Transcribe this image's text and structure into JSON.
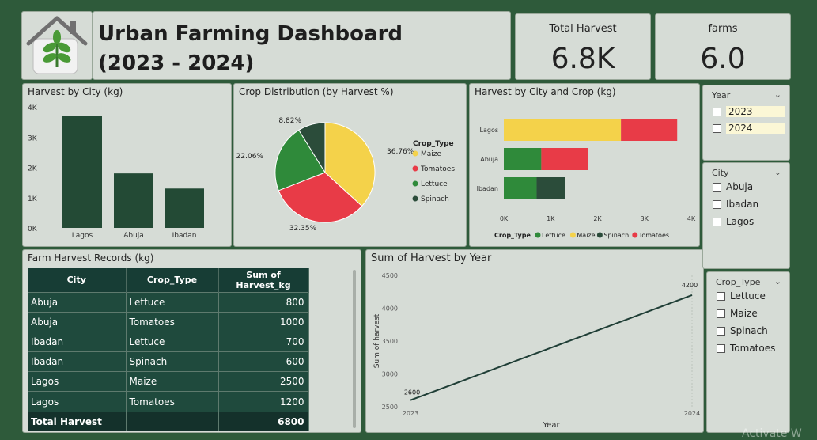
{
  "header": {
    "title": "Urban Farming Dashboard (2023 - 2024)",
    "logo_icon": "house-plant-icon"
  },
  "kpis": [
    {
      "label": "Total Harvest",
      "value": "6.8K"
    },
    {
      "label": "farms",
      "value": "6.0"
    }
  ],
  "charts": {
    "harvest_by_city": {
      "title": "Harvest by City (kg)"
    },
    "crop_distribution": {
      "title": "Crop Distribution (by Harvest %)"
    },
    "harvest_by_city_crop": {
      "title": "Harvest by City and Crop (kg)"
    },
    "sum_by_year": {
      "title": "Sum of Harvest by Year"
    }
  },
  "chart_data": [
    {
      "type": "bar",
      "title": "Harvest by City (kg)",
      "categories": [
        "Lagos",
        "Abuja",
        "Ibadan"
      ],
      "values": [
        3700,
        1800,
        1300
      ],
      "yticks": [
        "0K",
        "1K",
        "2K",
        "3K",
        "4K"
      ],
      "ylim": [
        0,
        4000
      ],
      "color": "#234a35"
    },
    {
      "type": "pie",
      "title": "Crop Distribution (by Harvest %)",
      "legend_title": "Crop_Type",
      "slices": [
        {
          "name": "Maize",
          "value": 36.76,
          "label": "36.76%",
          "color": "#f4d24a"
        },
        {
          "name": "Tomatoes",
          "value": 32.35,
          "label": "32.35%",
          "color": "#e83b47"
        },
        {
          "name": "Lettuce",
          "value": 22.06,
          "label": "22.06%",
          "color": "#2f8a3a"
        },
        {
          "name": "Spinach",
          "value": 8.82,
          "label": "8.82%",
          "color": "#2b4c3a"
        }
      ],
      "legend_placement": "right"
    },
    {
      "type": "bar",
      "orientation": "horizontal",
      "stacked": true,
      "title": "Harvest by City and Crop (kg)",
      "categories": [
        "Lagos",
        "Abuja",
        "Ibadan"
      ],
      "series": [
        {
          "name": "Lettuce",
          "color": "#2f8a3a",
          "values": [
            0,
            800,
            700
          ]
        },
        {
          "name": "Maize",
          "color": "#f4d24a",
          "values": [
            2500,
            0,
            0
          ]
        },
        {
          "name": "Spinach",
          "color": "#2b4c3a",
          "values": [
            0,
            0,
            600
          ]
        },
        {
          "name": "Tomatoes",
          "color": "#e83b47",
          "values": [
            1200,
            1000,
            0
          ]
        }
      ],
      "xticks": [
        "0K",
        "1K",
        "2K",
        "3K",
        "4K"
      ],
      "xlim": [
        0,
        4000
      ],
      "legend_title": "Crop_Type",
      "legend_placement": "bottom"
    },
    {
      "type": "line",
      "title": "Sum of Harvest by Year",
      "x": [
        "2023",
        "2024"
      ],
      "values": [
        2600,
        4200
      ],
      "xlabel": "Year",
      "ylabel": "Sum of harvest",
      "yticks": [
        "2500",
        "3000",
        "3500",
        "4000",
        "4500"
      ],
      "ylim": [
        2500,
        4500
      ],
      "color": "#1e3d35"
    }
  ],
  "table": {
    "title": "Farm Harvest Records (kg)",
    "columns": [
      "City",
      "Crop_Type",
      "Sum of Harvest_kg"
    ],
    "rows": [
      [
        "Abuja",
        "Lettuce",
        "800"
      ],
      [
        "Abuja",
        "Tomatoes",
        "1000"
      ],
      [
        "Ibadan",
        "Lettuce",
        "700"
      ],
      [
        "Ibadan",
        "Spinach",
        "600"
      ],
      [
        "Lagos",
        "Maize",
        "2500"
      ],
      [
        "Lagos",
        "Tomatoes",
        "1200"
      ]
    ],
    "total": [
      "Total Harvest",
      "",
      "6800"
    ]
  },
  "slicers": {
    "year": {
      "title": "Year",
      "options": [
        "2023",
        "2024"
      ]
    },
    "city": {
      "title": "City",
      "options": [
        "Abuja",
        "Ibadan",
        "Lagos"
      ]
    },
    "crop": {
      "title": "Crop_Type",
      "options": [
        "Lettuce",
        "Maize",
        "Spinach",
        "Tomatoes"
      ]
    }
  },
  "watermark": "Activate W"
}
